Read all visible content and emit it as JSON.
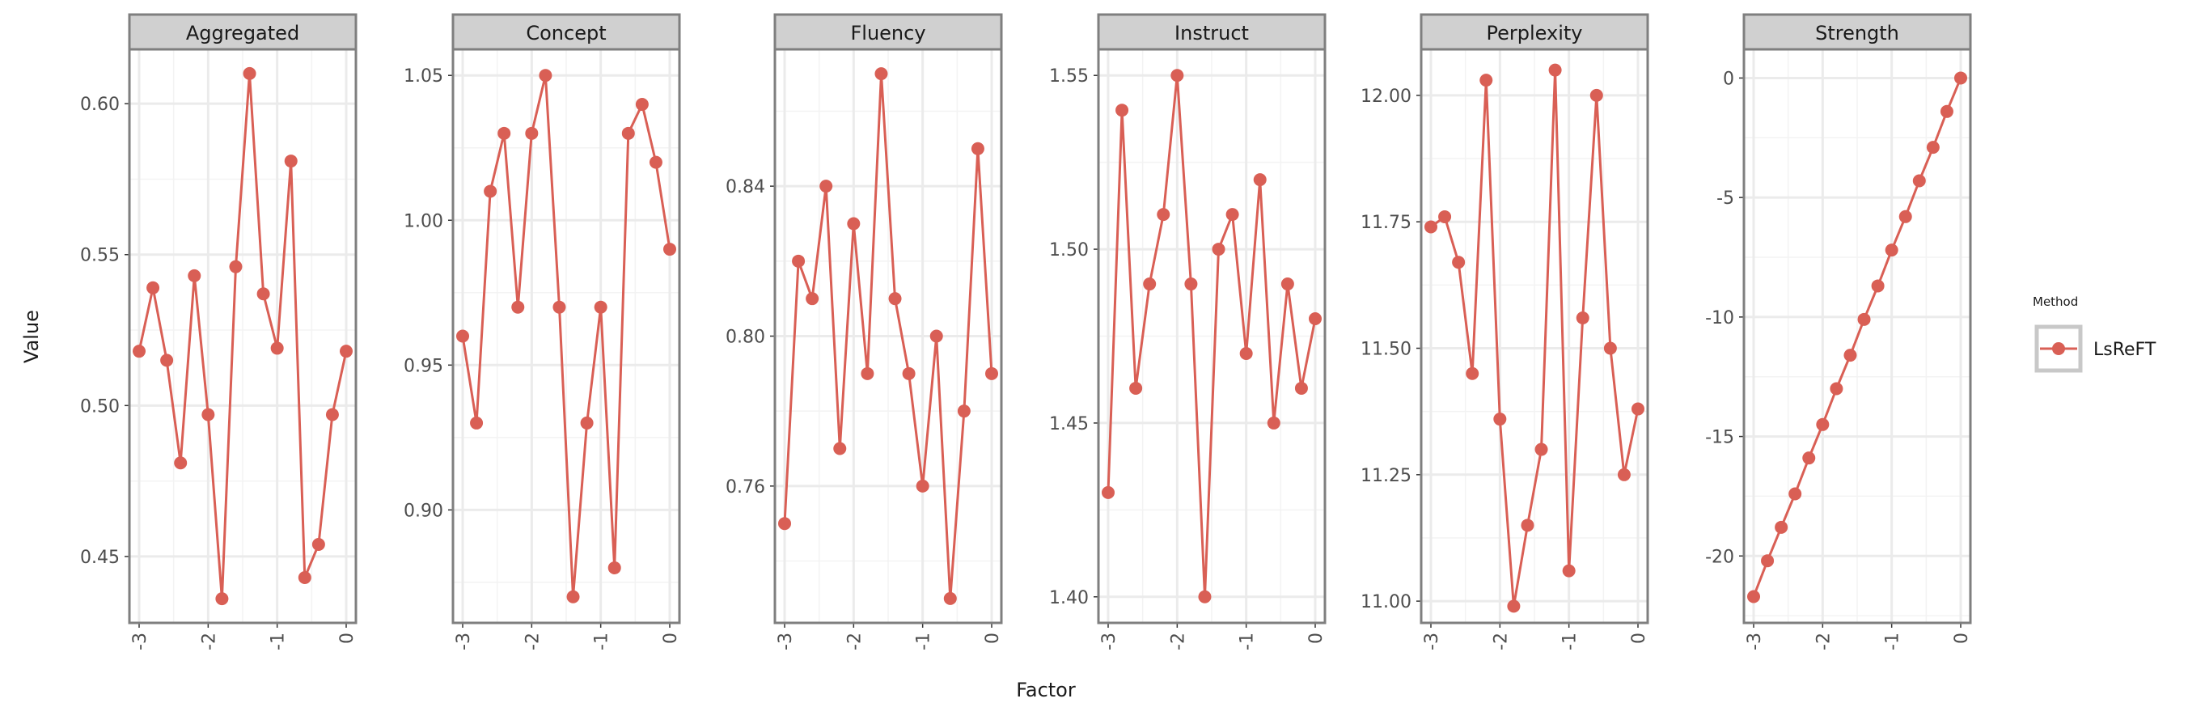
{
  "chart_data": {
    "type": "line",
    "xlabel": "Factor",
    "ylabel": "Value",
    "legend": {
      "title": "Method",
      "entries": [
        "LsReFT"
      ],
      "position": "right"
    },
    "colors": {
      "series": "#d95f55",
      "strip_fill": "#d0d0d0",
      "strip_border": "#7f7f7f",
      "grid": "#ebebeb"
    },
    "grid": true,
    "x": [
      -3.0,
      -2.8,
      -2.6,
      -2.4,
      -2.2,
      -2.0,
      -1.8,
      -1.6,
      -1.4,
      -1.2,
      -1.0,
      -0.8,
      -0.6,
      -0.4,
      -0.2,
      0.0
    ],
    "x_ticks": [
      -3,
      -2,
      -1,
      0
    ],
    "x_tick_labels": [
      "-3",
      "-2",
      "-1",
      "0"
    ],
    "xlim": [
      -3.0,
      0.0
    ],
    "panels": [
      {
        "title": "Aggregated",
        "ylim": [
          0.428,
          0.618
        ],
        "y_ticks": [
          0.45,
          0.5,
          0.55,
          0.6
        ],
        "y_tick_labels": [
          "0.45",
          "0.50",
          "0.55",
          "0.60"
        ],
        "series": [
          {
            "name": "LsReFT",
            "values": [
              0.518,
              0.539,
              0.515,
              0.481,
              0.543,
              0.497,
              0.436,
              0.546,
              0.61,
              0.537,
              0.519,
              0.581,
              0.443,
              0.454,
              0.497,
              0.518
            ]
          }
        ]
      },
      {
        "title": "Concept",
        "ylim": [
          0.861,
          1.059
        ],
        "y_ticks": [
          0.9,
          0.95,
          1.0,
          1.05
        ],
        "y_tick_labels": [
          "0.90",
          "0.95",
          "1.00",
          "1.05"
        ],
        "series": [
          {
            "name": "LsReFT",
            "values": [
              0.96,
              0.93,
              1.01,
              1.03,
              0.97,
              1.03,
              1.05,
              0.97,
              0.87,
              0.93,
              0.97,
              0.88,
              1.03,
              1.04,
              1.02,
              0.99
            ]
          }
        ]
      },
      {
        "title": "Fluency",
        "ylim": [
          0.7235,
          0.8765
        ],
        "y_ticks": [
          0.76,
          0.8,
          0.84
        ],
        "y_tick_labels": [
          "0.76",
          "0.80",
          "0.84"
        ],
        "series": [
          {
            "name": "LsReFT",
            "values": [
              0.75,
              0.82,
              0.81,
              0.84,
              0.77,
              0.83,
              0.79,
              0.87,
              0.81,
              0.79,
              0.76,
              0.8,
              0.73,
              0.78,
              0.85,
              0.79
            ]
          }
        ]
      },
      {
        "title": "Instruct",
        "ylim": [
          1.3925,
          1.5575
        ],
        "y_ticks": [
          1.4,
          1.45,
          1.5,
          1.55
        ],
        "y_tick_labels": [
          "1.40",
          "1.45",
          "1.50",
          "1.55"
        ],
        "series": [
          {
            "name": "LsReFT",
            "values": [
              1.43,
              1.54,
              1.46,
              1.49,
              1.51,
              1.55,
              1.49,
              1.4,
              1.5,
              1.51,
              1.47,
              1.52,
              1.45,
              1.49,
              1.46,
              1.48
            ]
          }
        ]
      },
      {
        "title": "Perplexity",
        "ylim": [
          10.957,
          12.091
        ],
        "y_ticks": [
          11.0,
          11.25,
          11.5,
          11.75,
          12.0
        ],
        "y_tick_labels": [
          "11.00",
          "11.25",
          "11.50",
          "11.75",
          "12.00"
        ],
        "series": [
          {
            "name": "LsReFT",
            "values": [
              11.74,
              11.76,
              11.67,
              11.45,
              12.03,
              11.36,
              10.99,
              11.15,
              11.3,
              12.05,
              11.06,
              11.56,
              12.0,
              11.5,
              11.25,
              11.38
            ]
          }
        ]
      },
      {
        "title": "Strength",
        "ylim": [
          -22.8,
          1.2
        ],
        "y_ticks": [
          -20,
          -15,
          -10,
          -5,
          0
        ],
        "y_tick_labels": [
          "-20",
          "-15",
          "-10",
          "-5",
          "0"
        ],
        "series": [
          {
            "name": "LsReFT",
            "values": [
              -21.7,
              -20.2,
              -18.8,
              -17.4,
              -15.9,
              -14.5,
              -13.0,
              -11.6,
              -10.1,
              -8.7,
              -7.2,
              -5.8,
              -4.3,
              -2.9,
              -1.4,
              0.0
            ]
          }
        ]
      }
    ]
  }
}
